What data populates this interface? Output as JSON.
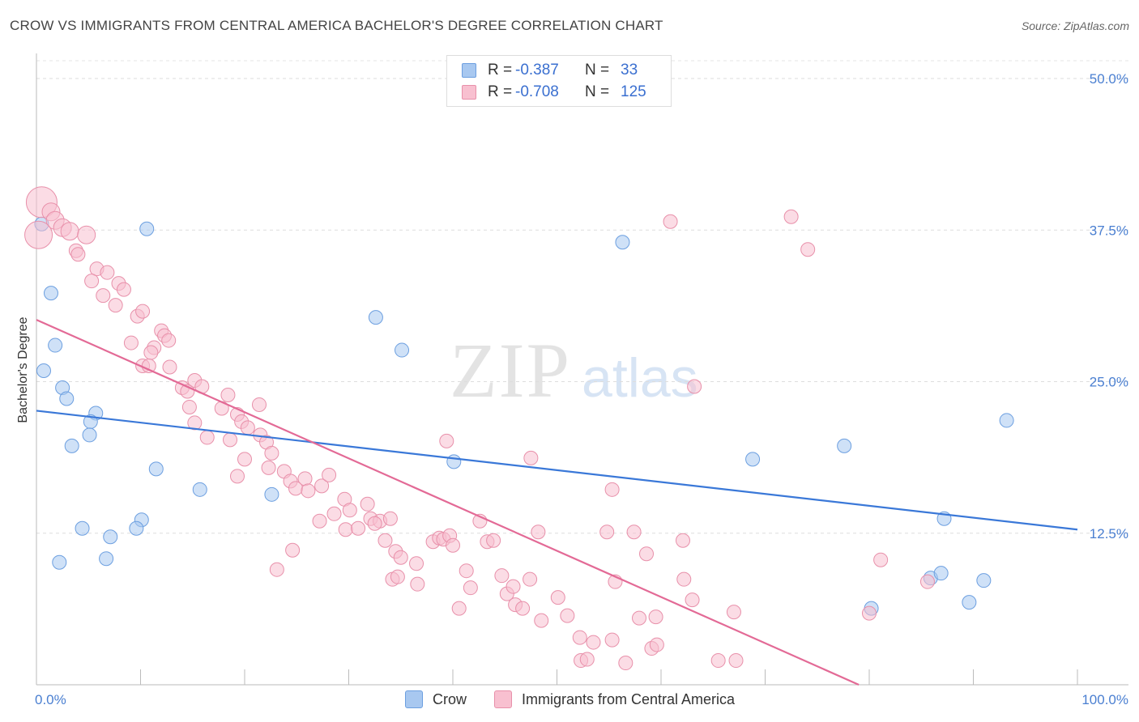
{
  "header": {
    "title": "CROW VS IMMIGRANTS FROM CENTRAL AMERICA BACHELOR'S DEGREE CORRELATION CHART",
    "source": "Source: ZipAtlas.com"
  },
  "watermark": {
    "zip": "ZIP",
    "atlas": "atlas"
  },
  "legend": {
    "rows": [
      {
        "r_label": "R =",
        "r_value": "-0.387",
        "n_label": "N =",
        "n_value": "33",
        "color": "#a8c8f0",
        "border": "#6c9fe0"
      },
      {
        "r_label": "R =",
        "r_value": "-0.708",
        "n_label": "N =",
        "n_value": "125",
        "color": "#f8c0d0",
        "border": "#e890aa"
      }
    ]
  },
  "bottom_legend": {
    "crow": "Crow",
    "immigrants": "Immigrants from Central America"
  },
  "chart_data": {
    "type": "scatter",
    "xlabel": "",
    "ylabel": "Bachelor's Degree",
    "xlim": [
      0,
      100
    ],
    "ylim": [
      0,
      50
    ],
    "x_tick_labels": [
      "0.0%",
      "100.0%"
    ],
    "y_ticks": [
      12.5,
      25.0,
      37.5,
      50.0
    ],
    "y_tick_labels": [
      "12.5%",
      "25.0%",
      "37.5%",
      "50.0%"
    ],
    "grid": true,
    "series": [
      {
        "name": "Crow",
        "color": "#a8c8f0",
        "stroke": "#6c9fe0",
        "line_color": "#3a78d8",
        "trend": {
          "x": [
            0,
            100
          ],
          "y": [
            22.6,
            12.8
          ]
        },
        "points": [
          [
            0.5,
            38.0
          ],
          [
            1.4,
            32.3
          ],
          [
            1.8,
            28.0
          ],
          [
            0.7,
            25.9
          ],
          [
            2.5,
            24.5
          ],
          [
            2.9,
            23.6
          ],
          [
            5.7,
            22.4
          ],
          [
            5.2,
            21.7
          ],
          [
            5.1,
            20.6
          ],
          [
            3.4,
            19.7
          ],
          [
            10.6,
            37.6
          ],
          [
            11.5,
            17.8
          ],
          [
            15.7,
            16.1
          ],
          [
            22.6,
            15.7
          ],
          [
            10.1,
            13.6
          ],
          [
            4.4,
            12.9
          ],
          [
            7.1,
            12.2
          ],
          [
            9.6,
            12.9
          ],
          [
            2.2,
            10.1
          ],
          [
            6.7,
            10.4
          ],
          [
            32.6,
            30.3
          ],
          [
            35.1,
            27.6
          ],
          [
            40.1,
            18.4
          ],
          [
            56.3,
            36.5
          ],
          [
            68.8,
            18.6
          ],
          [
            77.6,
            19.7
          ],
          [
            93.2,
            21.8
          ],
          [
            87.2,
            13.7
          ],
          [
            80.2,
            6.3
          ],
          [
            85.9,
            8.8
          ],
          [
            86.9,
            9.2
          ],
          [
            89.6,
            6.8
          ],
          [
            91.0,
            8.6
          ]
        ]
      },
      {
        "name": "Immigrants from Central America",
        "color": "#f8c0d0",
        "stroke": "#e890aa",
        "line_color": "#e36a96",
        "trend": {
          "x": [
            0,
            79
          ],
          "y": [
            30.1,
            0
          ]
        },
        "points": [
          [
            0.5,
            39.8
          ],
          [
            1.4,
            39.0
          ],
          [
            1.8,
            38.3
          ],
          [
            2.5,
            37.7
          ],
          [
            3.2,
            37.4
          ],
          [
            0.2,
            37.1
          ],
          [
            4.8,
            37.1
          ],
          [
            3.8,
            35.8
          ],
          [
            4.0,
            35.5
          ],
          [
            5.8,
            34.3
          ],
          [
            6.8,
            34.0
          ],
          [
            7.9,
            33.1
          ],
          [
            8.4,
            32.6
          ],
          [
            5.3,
            33.3
          ],
          [
            6.4,
            32.1
          ],
          [
            7.6,
            31.3
          ],
          [
            9.7,
            30.4
          ],
          [
            10.2,
            30.8
          ],
          [
            12.0,
            29.2
          ],
          [
            12.3,
            28.8
          ],
          [
            9.1,
            28.2
          ],
          [
            11.3,
            27.8
          ],
          [
            12.7,
            28.4
          ],
          [
            11.0,
            27.4
          ],
          [
            10.2,
            26.3
          ],
          [
            10.8,
            26.3
          ],
          [
            12.8,
            26.2
          ],
          [
            14.0,
            24.5
          ],
          [
            14.5,
            24.2
          ],
          [
            15.2,
            25.1
          ],
          [
            15.9,
            24.6
          ],
          [
            14.7,
            22.9
          ],
          [
            17.8,
            22.8
          ],
          [
            18.4,
            23.9
          ],
          [
            19.3,
            22.3
          ],
          [
            19.7,
            21.7
          ],
          [
            15.2,
            21.6
          ],
          [
            16.4,
            20.4
          ],
          [
            18.6,
            20.2
          ],
          [
            20.3,
            21.2
          ],
          [
            21.5,
            20.6
          ],
          [
            22.1,
            20.0
          ],
          [
            22.6,
            19.1
          ],
          [
            22.3,
            17.9
          ],
          [
            23.8,
            17.6
          ],
          [
            24.4,
            16.8
          ],
          [
            25.8,
            17.0
          ],
          [
            19.3,
            17.2
          ],
          [
            24.9,
            16.2
          ],
          [
            26.1,
            16.0
          ],
          [
            27.4,
            16.4
          ],
          [
            28.1,
            17.3
          ],
          [
            29.6,
            15.3
          ],
          [
            28.6,
            14.1
          ],
          [
            30.1,
            14.4
          ],
          [
            27.2,
            13.5
          ],
          [
            31.8,
            14.9
          ],
          [
            32.1,
            13.7
          ],
          [
            33.0,
            13.5
          ],
          [
            34.0,
            13.7
          ],
          [
            32.5,
            13.3
          ],
          [
            29.7,
            12.8
          ],
          [
            30.9,
            12.9
          ],
          [
            33.5,
            11.9
          ],
          [
            34.5,
            11.0
          ],
          [
            35.0,
            10.5
          ],
          [
            36.5,
            10.0
          ],
          [
            34.2,
            8.7
          ],
          [
            36.6,
            8.3
          ],
          [
            34.7,
            8.9
          ],
          [
            38.1,
            11.8
          ],
          [
            38.7,
            12.1
          ],
          [
            39.1,
            12.0
          ],
          [
            39.7,
            12.3
          ],
          [
            40.0,
            11.5
          ],
          [
            41.3,
            9.4
          ],
          [
            41.7,
            8.0
          ],
          [
            40.6,
            6.3
          ],
          [
            42.6,
            13.5
          ],
          [
            43.3,
            11.8
          ],
          [
            43.9,
            11.9
          ],
          [
            44.7,
            9.0
          ],
          [
            45.2,
            7.5
          ],
          [
            45.8,
            8.1
          ],
          [
            46.0,
            6.6
          ],
          [
            46.7,
            6.3
          ],
          [
            47.4,
            8.7
          ],
          [
            48.5,
            5.3
          ],
          [
            50.1,
            7.2
          ],
          [
            51.0,
            5.7
          ],
          [
            52.2,
            3.9
          ],
          [
            52.3,
            2.0
          ],
          [
            52.9,
            2.1
          ],
          [
            53.5,
            3.5
          ],
          [
            55.3,
            3.7
          ],
          [
            55.3,
            16.1
          ],
          [
            55.6,
            8.5
          ],
          [
            57.4,
            12.6
          ],
          [
            57.9,
            5.5
          ],
          [
            58.6,
            10.8
          ],
          [
            59.1,
            3.0
          ],
          [
            59.5,
            5.6
          ],
          [
            59.6,
            3.3
          ],
          [
            56.6,
            1.8
          ],
          [
            60.9,
            38.2
          ],
          [
            62.2,
            8.7
          ],
          [
            62.1,
            11.9
          ],
          [
            63.2,
            24.6
          ],
          [
            65.5,
            2.0
          ],
          [
            67.2,
            2.0
          ],
          [
            72.5,
            38.6
          ],
          [
            74.1,
            35.9
          ],
          [
            54.8,
            12.6
          ],
          [
            48.2,
            12.6
          ],
          [
            47.5,
            18.7
          ],
          [
            39.4,
            20.1
          ],
          [
            24.6,
            11.1
          ],
          [
            23.1,
            9.5
          ],
          [
            20.0,
            18.6
          ],
          [
            21.4,
            23.1
          ],
          [
            80.0,
            5.9
          ],
          [
            81.1,
            10.3
          ],
          [
            85.6,
            8.5
          ],
          [
            67.0,
            6.0
          ],
          [
            63.0,
            7.0
          ]
        ]
      }
    ]
  }
}
